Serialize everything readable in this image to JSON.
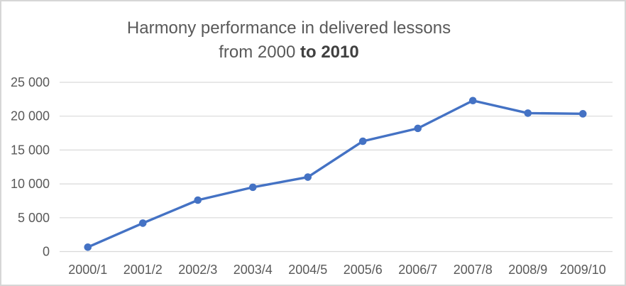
{
  "chart_data": {
    "type": "line",
    "title": "Harmony performance in delivered lessons from 2000 to 2010",
    "title_lines": {
      "line1": "Harmony performance in delivered lessons",
      "line2_regular": "from 2000 ",
      "line2_bold": "to 2010"
    },
    "categories": [
      "2000/1",
      "2001/2",
      "2002/3",
      "2003/4",
      "2004/5",
      "2005/6",
      "2006/7",
      "2007/8",
      "2008/9",
      "2009/10"
    ],
    "series": [
      {
        "values": [
          650,
          4200,
          7600,
          9500,
          11000,
          16300,
          18200,
          22300,
          20450,
          20350
        ]
      }
    ],
    "xlabel": "",
    "ylabel": "",
    "ylim": [
      0,
      25000
    ],
    "ytick_interval": 5000,
    "ytick_labels": [
      "0",
      "5 000",
      "10 000",
      "15 000",
      "20 000",
      "25 000"
    ],
    "grid": true,
    "legend": "none",
    "marker": "circle",
    "colors": {
      "line": "#4472C4",
      "marker": "#4472C4",
      "gridline": "#D9D9D9",
      "axis_line": "#D9D9D9",
      "axis_text": "#595959",
      "title_text": "#595959",
      "background": "#FFFFFF",
      "frame_border": "#D6D6D6"
    }
  }
}
